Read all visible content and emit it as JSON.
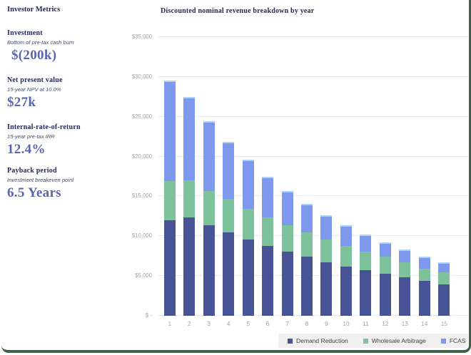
{
  "metrics": {
    "panel_title": "Investor Metrics",
    "items": [
      {
        "label": "Investment",
        "sub": "Bottom of pre-tax cash burn",
        "value": "$(200k)"
      },
      {
        "label": "Net present value",
        "sub": "15-year NPV at 10.0%",
        "value": "$27k"
      },
      {
        "label": "Internal-rate-of-return",
        "sub": "15-year pre-tax IRR",
        "value": "12.4%"
      },
      {
        "label": "Payback period",
        "sub": "Investment breakeven point",
        "value": "6.5 Years"
      }
    ]
  },
  "chart_data": {
    "type": "bar",
    "stacked": true,
    "title": "Discounted nominal revenue breakdown by year",
    "categories": [
      "1",
      "2",
      "3",
      "4",
      "5",
      "6",
      "7",
      "8",
      "9",
      "10",
      "11",
      "12",
      "13",
      "14",
      "15"
    ],
    "series": [
      {
        "name": "Demand Reduction",
        "color": "#475394",
        "values": [
          12000,
          12350,
          11400,
          10450,
          9550,
          8750,
          8050,
          7400,
          6750,
          6150,
          5700,
          5250,
          4800,
          4350,
          3950
        ]
      },
      {
        "name": "Wholesale Arbitrage",
        "color": "#7dc29b",
        "values": [
          4900,
          4650,
          4300,
          4250,
          3900,
          3600,
          3350,
          3050,
          2800,
          2650,
          2350,
          2150,
          1950,
          1600,
          1550
        ]
      },
      {
        "name": "FCAS",
        "color": "#7e98ee",
        "values": [
          12600,
          10500,
          8700,
          7100,
          6150,
          5150,
          4300,
          3650,
          3100,
          2600,
          2200,
          1800,
          1550,
          1500,
          1250
        ]
      }
    ],
    "ylim": [
      0,
      35000
    ],
    "yticks": [
      {
        "value": 0,
        "label": "$ -"
      },
      {
        "value": 5000,
        "label": "$5,000"
      },
      {
        "value": 10000,
        "label": "$10,000"
      },
      {
        "value": 15000,
        "label": "$15,000"
      },
      {
        "value": 20000,
        "label": "$20,000"
      },
      {
        "value": 25000,
        "label": "$25,000"
      },
      {
        "value": 30000,
        "label": "$30,000"
      },
      {
        "value": 35000,
        "label": "$35,000"
      }
    ],
    "legend_position": "bottom-right",
    "grid": true
  }
}
